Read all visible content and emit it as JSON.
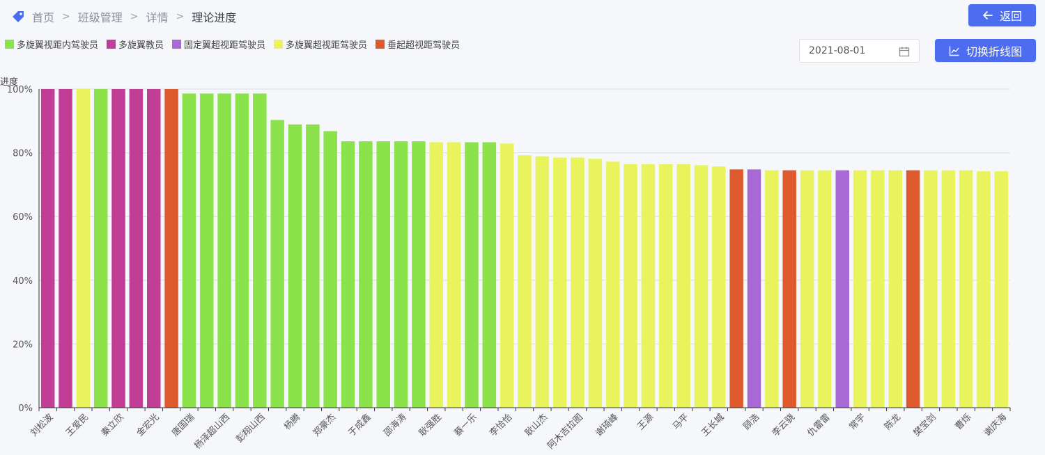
{
  "breadcrumb": {
    "items": [
      "首页",
      "班级管理",
      "详情"
    ],
    "current": "理论进度",
    "separator": ">"
  },
  "buttons": {
    "back_label": "返回",
    "switch_label": "切换折线图"
  },
  "date_picker": {
    "value": "2021-08-01"
  },
  "colors": {
    "accent": "#4c6df0",
    "多旋翼视距内驾驶员": "#8be24a",
    "多旋翼教员": "#c23d96",
    "固定翼超视距驾驶员": "#a868d6",
    "多旋翼超视距驾驶员": "#e9f35c",
    "垂起超视距驾驶员": "#de5a2c"
  },
  "chart_data": {
    "type": "bar",
    "ylabel": "进度",
    "ylim": [
      0,
      100
    ],
    "yticks": [
      "0%",
      "20%",
      "40%",
      "60%",
      "80%",
      "100%"
    ],
    "grid": true,
    "legend_position": "top-left",
    "legend": [
      "多旋翼视距内驾驶员",
      "多旋翼教员",
      "固定翼超视距驾驶员",
      "多旋翼超视距驾驶员",
      "垂起超视距驾驶员"
    ],
    "categories": [
      "刘松波",
      "",
      "王爱民",
      "",
      "秦立欣",
      "",
      "金宏光",
      "",
      "唐国瑞",
      "",
      "杨泽超山西",
      "",
      "彭翔山西",
      "",
      "杨腾",
      "",
      "郑豪杰",
      "",
      "于成鑫",
      "",
      "邵海涛",
      "",
      "耿强胜",
      "",
      "蔡一乐",
      "",
      "李恰恰",
      "",
      "耿山杰",
      "",
      "阿木吉拉图",
      "",
      "谢琦峰",
      "",
      "王源",
      "",
      "马平",
      "",
      "王长城",
      "",
      "顾浩",
      "",
      "李云骁",
      "",
      "仇雷雷",
      "",
      "常宇",
      "",
      "陈龙",
      "",
      "樊宝剑",
      "",
      "曹烁",
      "",
      "谢庆海"
    ],
    "values": [
      100,
      100,
      100,
      100,
      100,
      100,
      100,
      100,
      98.6,
      98.6,
      98.6,
      98.6,
      98.6,
      90.3,
      88.9,
      88.9,
      86.8,
      83.6,
      83.6,
      83.6,
      83.6,
      83.6,
      83.3,
      83.3,
      83.3,
      83.3,
      82.9,
      79.2,
      78.9,
      78.5,
      78.5,
      78.1,
      77.2,
      76.4,
      76.4,
      76.4,
      76.4,
      76.1,
      75.7,
      74.8,
      74.8,
      74.5,
      74.5,
      74.5,
      74.5,
      74.5,
      74.5,
      74.5,
      74.5,
      74.5,
      74.5,
      74.5,
      74.5,
      74.2,
      74.2
    ],
    "groups": [
      "多旋翼教员",
      "多旋翼教员",
      "多旋翼超视距驾驶员",
      "多旋翼视距内驾驶员",
      "多旋翼教员",
      "多旋翼教员",
      "多旋翼教员",
      "垂起超视距驾驶员",
      "多旋翼视距内驾驶员",
      "多旋翼视距内驾驶员",
      "多旋翼视距内驾驶员",
      "多旋翼视距内驾驶员",
      "多旋翼视距内驾驶员",
      "多旋翼视距内驾驶员",
      "多旋翼视距内驾驶员",
      "多旋翼视距内驾驶员",
      "多旋翼视距内驾驶员",
      "多旋翼视距内驾驶员",
      "多旋翼视距内驾驶员",
      "多旋翼视距内驾驶员",
      "多旋翼视距内驾驶员",
      "多旋翼视距内驾驶员",
      "多旋翼超视距驾驶员",
      "多旋翼超视距驾驶员",
      "多旋翼视距内驾驶员",
      "多旋翼视距内驾驶员",
      "多旋翼超视距驾驶员",
      "多旋翼超视距驾驶员",
      "多旋翼超视距驾驶员",
      "多旋翼超视距驾驶员",
      "多旋翼超视距驾驶员",
      "多旋翼超视距驾驶员",
      "多旋翼超视距驾驶员",
      "多旋翼超视距驾驶员",
      "多旋翼超视距驾驶员",
      "多旋翼超视距驾驶员",
      "多旋翼超视距驾驶员",
      "多旋翼超视距驾驶员",
      "多旋翼超视距驾驶员",
      "垂起超视距驾驶员",
      "固定翼超视距驾驶员",
      "多旋翼超视距驾驶员",
      "垂起超视距驾驶员",
      "多旋翼超视距驾驶员",
      "多旋翼超视距驾驶员",
      "固定翼超视距驾驶员",
      "多旋翼超视距驾驶员",
      "多旋翼超视距驾驶员",
      "多旋翼超视距驾驶员",
      "垂起超视距驾驶员",
      "多旋翼超视距驾驶员",
      "多旋翼超视距驾驶员",
      "多旋翼超视距驾驶员",
      "多旋翼超视距驾驶员",
      "多旋翼超视距驾驶员"
    ]
  }
}
